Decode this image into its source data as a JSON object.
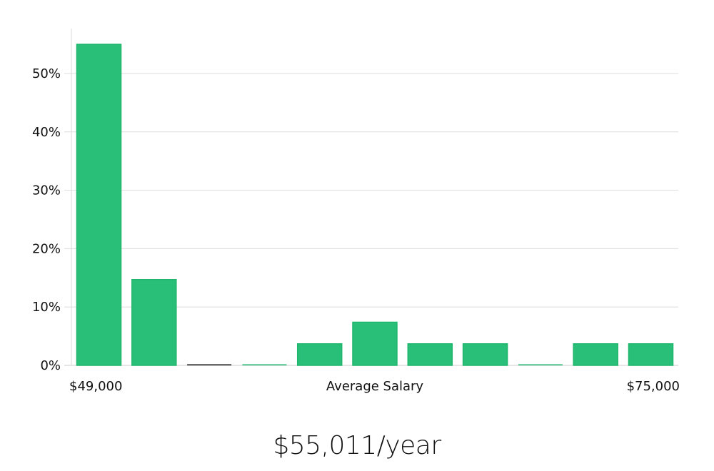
{
  "chart_data": {
    "type": "bar",
    "title": "",
    "xlabel": "Average Salary",
    "x_min_label": "$49,000",
    "x_max_label": "$75,000",
    "ylabel": "",
    "ylim": [
      0,
      55
    ],
    "yticks": [
      0,
      10,
      20,
      30,
      40,
      50
    ],
    "ytick_labels": [
      "0%",
      "10%",
      "20%",
      "30%",
      "40%",
      "50%"
    ],
    "values": [
      55,
      14.7,
      0,
      0,
      3.7,
      7.4,
      3.7,
      3.7,
      0,
      3.7,
      3.7
    ],
    "grid": true,
    "bar_color": "#29bf78",
    "bar_edge_color": "#1fb56c",
    "zero_bar_colors": [
      "#111111",
      "#1fb56c"
    ],
    "grid_color": "#dddddd"
  },
  "summary": {
    "average_salary": "$55,011/year"
  }
}
